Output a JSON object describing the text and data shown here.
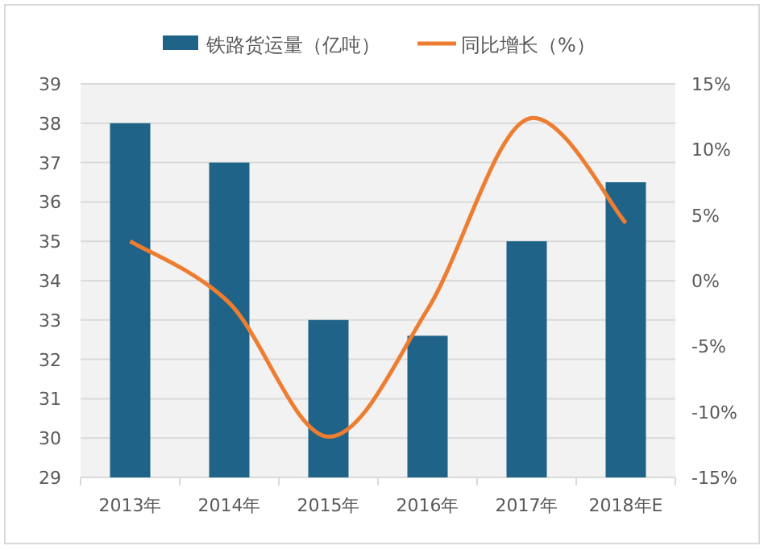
{
  "chart_data": {
    "type": "bar",
    "categories": [
      "2013年",
      "2014年",
      "2015年",
      "2016年",
      "2017年",
      "2018年E"
    ],
    "series": [
      {
        "name": "铁路货运量（亿吨）",
        "color": "#1f6388",
        "values": [
          38.0,
          37.0,
          33.0,
          32.6,
          35.0,
          36.5
        ]
      },
      {
        "name": "同比增长（%）",
        "type": "line",
        "axis": "y2",
        "color": "#ed7d31",
        "values": [
          3.0,
          -1.7,
          -11.9,
          -2.2,
          12.3,
          4.4
        ]
      }
    ],
    "ylim": [
      29,
      39
    ],
    "yticks": [
      29,
      30,
      31,
      32,
      33,
      34,
      35,
      36,
      37,
      38,
      39
    ],
    "y2lim": [
      -15,
      15
    ],
    "y2ticks": [
      {
        "value": -15,
        "label": "-15%"
      },
      {
        "value": -10,
        "label": "-10%"
      },
      {
        "value": -5,
        "label": "-5%"
      },
      {
        "value": 0,
        "label": "0%"
      },
      {
        "value": 5,
        "label": "5%"
      },
      {
        "value": 10,
        "label": "10%"
      },
      {
        "value": 15,
        "label": "15%"
      }
    ],
    "grid": "y",
    "legend": "top"
  }
}
